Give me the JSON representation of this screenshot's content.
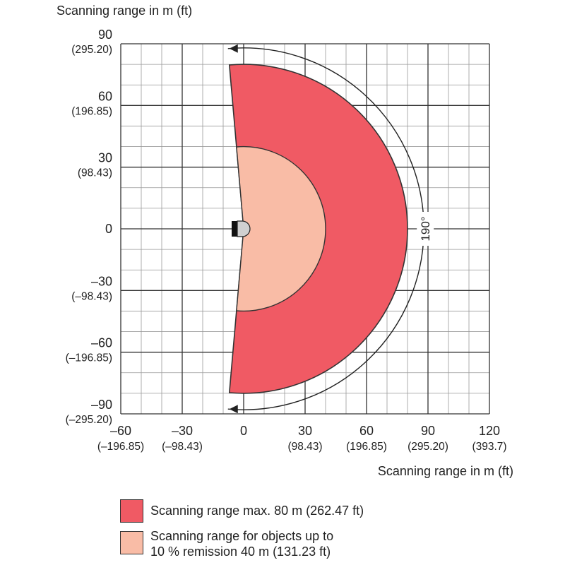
{
  "title": "Scanning range in m (ft)",
  "x_axis_label": "Scanning range in m (ft)",
  "angle_label": "190°",
  "y_ticks": [
    {
      "value": 90,
      "label": "90",
      "sub": "(295.20)"
    },
    {
      "value": 60,
      "label": "60",
      "sub": "(196.85)"
    },
    {
      "value": 30,
      "label": "30",
      "sub": "(98.43)"
    },
    {
      "value": 0,
      "label": "0",
      "sub": ""
    },
    {
      "value": -30,
      "label": "–30",
      "sub": "(–98.43)"
    },
    {
      "value": -60,
      "label": "–60",
      "sub": "(–196.85)"
    },
    {
      "value": -90,
      "label": "–90",
      "sub": "(–295.20)"
    }
  ],
  "x_ticks": [
    {
      "value": -60,
      "label": "–60",
      "sub": "(–196.85)"
    },
    {
      "value": -30,
      "label": "–30",
      "sub": "(–98.43)"
    },
    {
      "value": 0,
      "label": "0",
      "sub": ""
    },
    {
      "value": 30,
      "label": "30",
      "sub": "(98.43)"
    },
    {
      "value": 60,
      "label": "60",
      "sub": "(196.85)"
    },
    {
      "value": 90,
      "label": "90",
      "sub": "(295.20)"
    },
    {
      "value": 120,
      "label": "120",
      "sub": "(393.7)"
    }
  ],
  "ranges": {
    "x_min": -60,
    "x_max": 120,
    "y_min": -90,
    "y_max": 90,
    "minor_step": 10,
    "major_step": 30,
    "max_radius": 80,
    "remission_radius": 40,
    "field_angle_deg": 190
  },
  "colors": {
    "max_range": "#f05a64",
    "remission_range": "#f9bca6",
    "grid": "#999999",
    "grid_major": "#333333"
  },
  "legend": {
    "max_range_lines": [
      "Scanning range max. 80 m (262.47 ft)"
    ],
    "remission_lines": [
      "Scanning range for objects up to",
      "10 % remission 40 m (131.23 ft)"
    ]
  }
}
